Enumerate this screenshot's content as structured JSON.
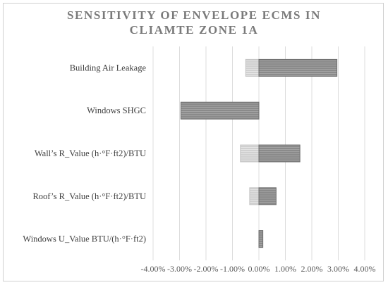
{
  "chart_data": {
    "type": "bar",
    "orientation": "horizontal",
    "title_lines": [
      "SENSITIVITY OF ENVELOPE ECMS IN",
      "CLIAMTE ZONE 1A"
    ],
    "categories": [
      "Building Air Leakage",
      "Windows SHGC",
      "Wall’s R_Value (h·°F·ft2)/BTU",
      "Roof’s R_Value (h·°F·ft2)/BTU",
      "Windows U_Value BTU/(h·°F·ft2)"
    ],
    "series": [
      {
        "values": [
          -0.5,
          0.0,
          -0.7,
          -0.35,
          0.0
        ],
        "color": "#d0d0d0"
      },
      {
        "values": [
          2.95,
          -2.95,
          1.55,
          0.65,
          0.15
        ],
        "color": "#8a8a8a"
      }
    ],
    "xlim": [
      -4,
      4
    ],
    "xticks": [
      -4,
      -3,
      -2,
      -1,
      0,
      1,
      2,
      3,
      4
    ],
    "xtick_labels": [
      "-4.00%",
      "-3.00%",
      "-2.00%",
      "-1.00%",
      "0.00%",
      "1.00%",
      "2.00%",
      "3.00%",
      "4.00%"
    ],
    "grid": true,
    "legend": "none"
  }
}
